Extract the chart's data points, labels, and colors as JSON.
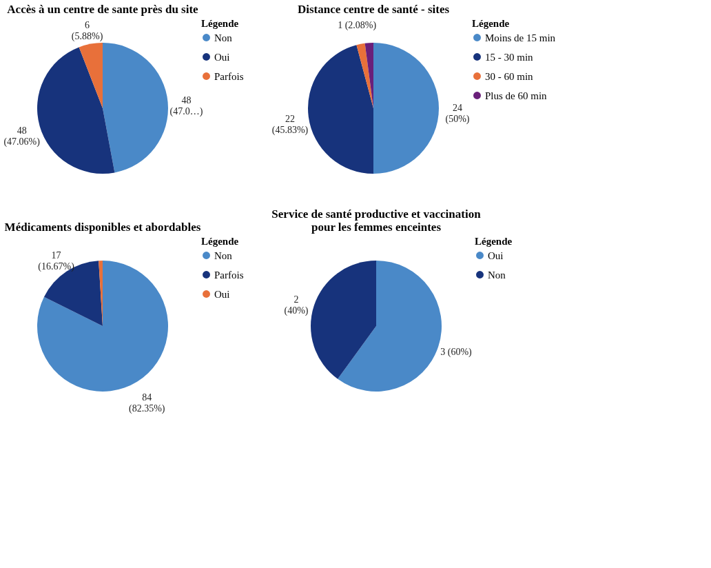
{
  "chart_data": [
    {
      "type": "pie",
      "title": "Accès à un centre de sante près du site",
      "legend_title": "Légende",
      "legend": "right",
      "categories": [
        "Non",
        "Oui",
        "Parfois"
      ],
      "values": [
        48,
        48,
        6
      ],
      "colors": [
        "#4a89c8",
        "#17337c",
        "#e8703a"
      ],
      "value_labels": [
        "48\n(47.0…)",
        "48\n(47.06%)",
        "6\n(5.88%)"
      ]
    },
    {
      "type": "pie",
      "title": "Distance centre de santé - sites",
      "legend_title": "Légende",
      "legend": "right",
      "categories": [
        "Moins de 15 min",
        "15 - 30 min",
        "30 - 60 min",
        "Plus de 60 min"
      ],
      "values": [
        24,
        22,
        1,
        1
      ],
      "colors": [
        "#4a89c8",
        "#17337c",
        "#e8703a",
        "#6a1f7a"
      ],
      "value_labels": [
        "24\n(50%)",
        "22\n(45.83%)",
        "1 (2.08%)",
        null
      ]
    },
    {
      "type": "pie",
      "title": "Médicaments disponibles et abordables",
      "legend_title": "Légende",
      "legend": "right",
      "categories": [
        "Non",
        "Parfois",
        "Oui"
      ],
      "values": [
        84,
        17,
        1
      ],
      "colors": [
        "#4a89c8",
        "#17337c",
        "#e8703a"
      ],
      "value_labels": [
        "84\n(82.35%)",
        "17\n(16.67%)",
        null
      ]
    },
    {
      "type": "pie",
      "title": "Service de santé productive et vaccination pour les femmes enceintes",
      "legend_title": "Légende",
      "legend": "right",
      "categories": [
        "Oui",
        "Non"
      ],
      "values": [
        3,
        2
      ],
      "colors": [
        "#4a89c8",
        "#17337c"
      ],
      "value_labels": [
        "3 (60%)",
        "2\n(40%)"
      ]
    }
  ]
}
